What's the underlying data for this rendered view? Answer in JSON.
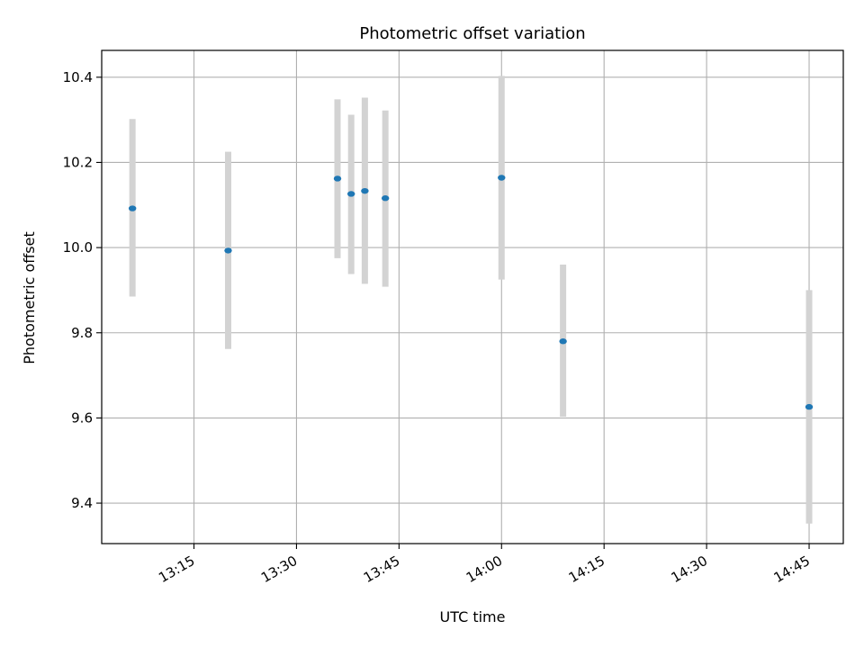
{
  "chart_data": {
    "type": "scatter",
    "title": "Photometric offset variation",
    "xlabel": "UTC time",
    "ylabel": "Photometric offset",
    "x_tick_labels": [
      "13:15",
      "13:30",
      "13:45",
      "14:00",
      "14:15",
      "14:30",
      "14:45"
    ],
    "y_tick_labels": [
      "9.4",
      "9.6",
      "9.8",
      "10.0",
      "10.2",
      "10.4"
    ],
    "y_ticks": [
      9.4,
      9.6,
      9.8,
      10.0,
      10.2,
      10.4
    ],
    "xlim": [
      "13:01:30",
      "14:50:00"
    ],
    "ylim": [
      9.305,
      10.463
    ],
    "grid": true,
    "marker_color": "#1f77b4",
    "errorbar_color": "#d3d3d3",
    "points": [
      {
        "x": "13:06:00",
        "y": 10.092,
        "err_low": 9.885,
        "err_high": 10.302
      },
      {
        "x": "13:20:00",
        "y": 9.993,
        "err_low": 9.762,
        "err_high": 10.225
      },
      {
        "x": "13:36:00",
        "y": 10.162,
        "err_low": 9.975,
        "err_high": 10.348
      },
      {
        "x": "13:38:00",
        "y": 10.126,
        "err_low": 9.938,
        "err_high": 10.312
      },
      {
        "x": "13:40:00",
        "y": 10.133,
        "err_low": 9.915,
        "err_high": 10.352
      },
      {
        "x": "13:43:00",
        "y": 10.116,
        "err_low": 9.908,
        "err_high": 10.322
      },
      {
        "x": "14:00:00",
        "y": 10.164,
        "err_low": 9.925,
        "err_high": 10.403
      },
      {
        "x": "14:09:00",
        "y": 9.78,
        "err_low": 9.603,
        "err_high": 9.96
      },
      {
        "x": "14:45:00",
        "y": 9.626,
        "err_low": 9.352,
        "err_high": 9.9
      }
    ]
  }
}
